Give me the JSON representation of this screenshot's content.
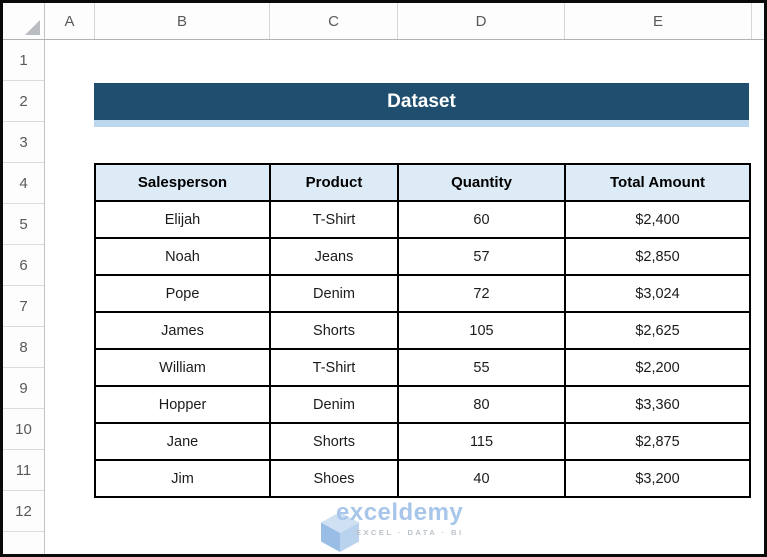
{
  "spreadsheet": {
    "column_headers": [
      "A",
      "B",
      "C",
      "D",
      "E"
    ],
    "row_headers": [
      "1",
      "2",
      "3",
      "4",
      "5",
      "6",
      "7",
      "8",
      "9",
      "10",
      "11",
      "12"
    ],
    "title_banner": {
      "text": "Dataset",
      "bg_color": "#1F4E6E",
      "accent_color": "#BDD7EE"
    },
    "table": {
      "header_bg_color": "#DDEBF7",
      "headers": [
        "Salesperson",
        "Product",
        "Quantity",
        "Total Amount"
      ],
      "rows": [
        [
          "Elijah",
          "T-Shirt",
          "60",
          "$2,400"
        ],
        [
          "Noah",
          "Jeans",
          "57",
          "$2,850"
        ],
        [
          "Pope",
          "Denim",
          "72",
          "$3,024"
        ],
        [
          "James",
          "Shorts",
          "105",
          "$2,625"
        ],
        [
          "William",
          "T-Shirt",
          "55",
          "$2,200"
        ],
        [
          "Hopper",
          "Denim",
          "80",
          "$3,360"
        ],
        [
          "Jane",
          "Shorts",
          "115",
          "$2,875"
        ],
        [
          "Jim",
          "Shoes",
          "40",
          "$3,200"
        ]
      ]
    },
    "watermark": {
      "brand": "exceldemy",
      "tagline": "EXCEL · DATA · BI",
      "logo": "cube-icon",
      "brand_color": "#A8C6E9"
    }
  }
}
